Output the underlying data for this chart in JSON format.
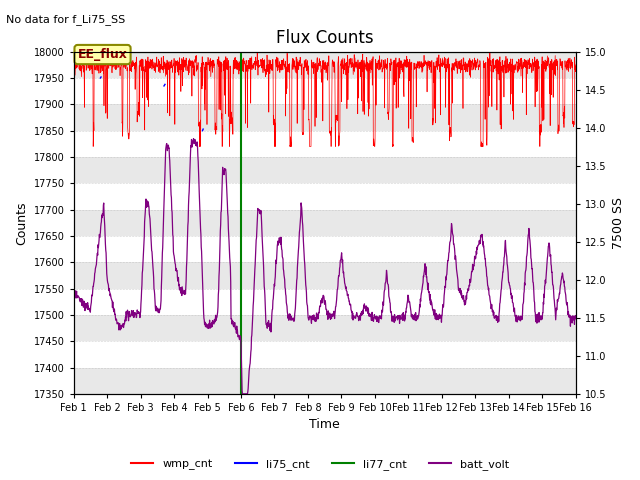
{
  "title": "Flux Counts",
  "subtitle": "No data for f_Li75_SS",
  "xlabel": "Time",
  "ylabel_left": "Counts",
  "ylabel_right": "7500 SS",
  "ylim_left": [
    17350,
    18000
  ],
  "ylim_right": [
    10.5,
    15.0
  ],
  "x_start": 0,
  "x_end": 15,
  "x_ticks": [
    0,
    1,
    2,
    3,
    4,
    5,
    6,
    7,
    8,
    9,
    10,
    11,
    12,
    13,
    14,
    15
  ],
  "x_ticklabels": [
    "Feb 1",
    "Feb 2",
    "Feb 3",
    "Feb 4",
    "Feb 5",
    "Feb 6",
    "Feb 7",
    "Feb 8",
    "Feb 9",
    "Feb 10",
    "Feb 11",
    "Feb 12",
    "Feb 13",
    "Feb 14",
    "Feb 15",
    "Feb 16"
  ],
  "annotation_text": "EE_flux",
  "green_line_x": 5.0,
  "legend_entries": [
    "wmp_cnt",
    "li75_cnt",
    "li77_cnt",
    "batt_volt"
  ],
  "legend_colors": [
    "red",
    "blue",
    "green",
    "purple"
  ],
  "band_color": "#e8e8e8",
  "white_color": "#ffffff",
  "title_fontsize": 12,
  "subtitle_fontsize": 8,
  "tick_fontsize": 7,
  "label_fontsize": 9
}
